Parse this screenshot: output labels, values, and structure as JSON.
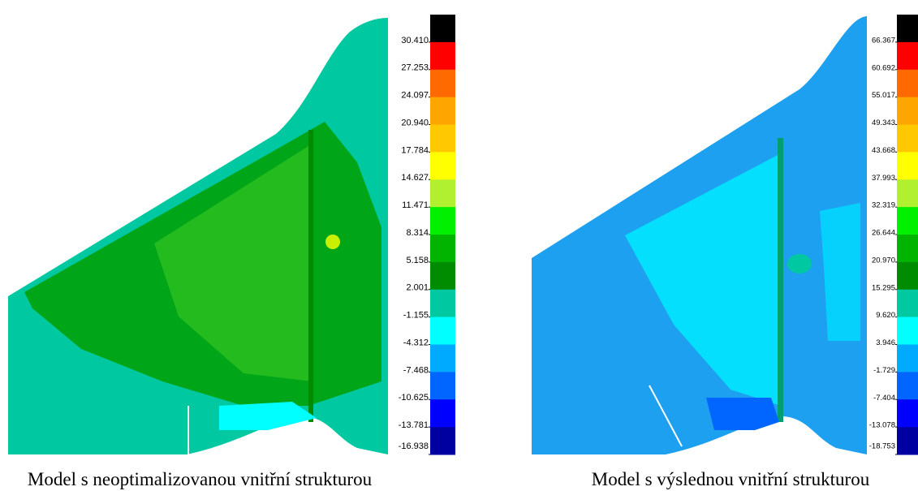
{
  "panels": [
    {
      "caption": "Model s neoptimalizovanou vnitřní strukturou",
      "colorbar": {
        "labels": [
          "30.410",
          "27.253",
          "24.097",
          "20.940",
          "17.784",
          "14.627",
          "11.471",
          "8.314",
          "5.158",
          "2.001",
          "-1.155",
          "-4.312",
          "-7.468",
          "-10.625",
          "-13.781",
          "-16.938"
        ],
        "colors": [
          "#000000",
          "#ff0000",
          "#ff6a00",
          "#ffa500",
          "#ffc800",
          "#ffff00",
          "#b0f030",
          "#00f000",
          "#00b400",
          "#008c00",
          "#00c8a0",
          "#00ffff",
          "#00aaff",
          "#0066ff",
          "#0000ff",
          "#0000a0"
        ]
      }
    },
    {
      "caption": "Model s výslednou vnitřní strukturou",
      "colorbar": {
        "labels": [
          "66.367",
          "60.692",
          "55.017",
          "49.343",
          "43.668",
          "37.993",
          "32.319",
          "26.644",
          "20.970",
          "15.295",
          "9.620",
          "3.946",
          "-1.729",
          "-7.404",
          "-13.078",
          "-18.753"
        ],
        "colors": [
          "#000000",
          "#ff0000",
          "#ff6a00",
          "#ffa500",
          "#ffc800",
          "#ffff00",
          "#b0f030",
          "#00f000",
          "#00b400",
          "#008c00",
          "#00c8a0",
          "#00ffff",
          "#00aaff",
          "#0066ff",
          "#0000ff",
          "#0000a0"
        ]
      }
    }
  ]
}
